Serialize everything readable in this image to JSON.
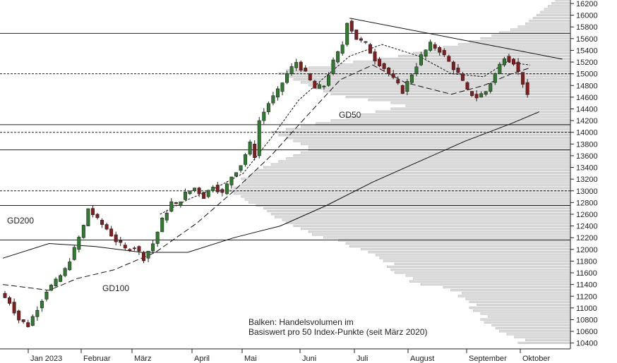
{
  "chart_data": {
    "type": "candlestick",
    "title": "",
    "xlabel": "",
    "ylabel": "",
    "ylim": [
      10300,
      16250
    ],
    "x_ticks": [
      "Jan 2023",
      "Februar",
      "März",
      "April",
      "Mai",
      "Juni",
      "Juli",
      "August",
      "September",
      "Oktober"
    ],
    "y_ticks": [
      10400,
      10600,
      10800,
      11000,
      11200,
      11400,
      11600,
      11800,
      12000,
      12200,
      12400,
      12600,
      12800,
      13000,
      13200,
      13400,
      13600,
      13800,
      14000,
      14200,
      14400,
      14600,
      14800,
      15000,
      15200,
      15400,
      15600,
      15800,
      16000,
      16200
    ],
    "annotations": {
      "gd200": "GD200",
      "gd100": "GD100",
      "gd50": "GD50",
      "note_line1": "Balken: Handelsvolumen im",
      "note_line2": "Basiswert pro 50 Index-Punkte (seit März 2020)"
    },
    "horizontal_lines": [
      {
        "value": 15690,
        "style": "solid"
      },
      {
        "value": 15000,
        "style": "dashed"
      },
      {
        "value": 14130,
        "style": "solid"
      },
      {
        "value": 14000,
        "style": "dashed"
      },
      {
        "value": 13700,
        "style": "solid"
      },
      {
        "value": 13000,
        "style": "dashed"
      },
      {
        "value": 12750,
        "style": "solid"
      },
      {
        "value": 12160,
        "style": "solid"
      }
    ],
    "price_path": [
      [
        11250,
        0
      ],
      [
        11100,
        2
      ],
      [
        10800,
        4
      ],
      [
        10700,
        6
      ],
      [
        11000,
        8
      ],
      [
        11300,
        10
      ],
      [
        11450,
        12
      ],
      [
        11650,
        14
      ],
      [
        12000,
        16
      ],
      [
        12400,
        18
      ],
      [
        12700,
        19
      ],
      [
        12500,
        21
      ],
      [
        12350,
        23
      ],
      [
        12150,
        25
      ],
      [
        12000,
        27
      ],
      [
        12050,
        29
      ],
      [
        11850,
        31
      ],
      [
        12100,
        33
      ],
      [
        12500,
        35
      ],
      [
        12800,
        37
      ],
      [
        12750,
        38
      ],
      [
        12950,
        40
      ],
      [
        13050,
        42
      ],
      [
        12900,
        44
      ],
      [
        13100,
        46
      ],
      [
        12950,
        48
      ],
      [
        13250,
        50
      ],
      [
        13450,
        52
      ],
      [
        13800,
        54
      ],
      [
        13600,
        55
      ],
      [
        14200,
        56
      ],
      [
        14500,
        58
      ],
      [
        14700,
        60
      ],
      [
        15000,
        62
      ],
      [
        15200,
        64
      ],
      [
        15000,
        66
      ],
      [
        14750,
        68
      ],
      [
        14800,
        70
      ],
      [
        15200,
        72
      ],
      [
        15500,
        74
      ],
      [
        15900,
        75
      ],
      [
        15600,
        77
      ],
      [
        15500,
        79
      ],
      [
        15250,
        81
      ],
      [
        15100,
        83
      ],
      [
        14900,
        85
      ],
      [
        14700,
        87
      ],
      [
        15000,
        89
      ],
      [
        15300,
        91
      ],
      [
        15500,
        93
      ],
      [
        15400,
        95
      ],
      [
        15200,
        97
      ],
      [
        15000,
        99
      ],
      [
        14700,
        101
      ],
      [
        14600,
        103
      ],
      [
        14700,
        105
      ],
      [
        15000,
        107
      ],
      [
        15300,
        109
      ],
      [
        15200,
        111
      ],
      [
        14850,
        113
      ],
      [
        14600,
        114
      ]
    ],
    "gd200": [
      [
        11850,
        0
      ],
      [
        12100,
        10
      ],
      [
        12050,
        20
      ],
      [
        11950,
        30
      ],
      [
        11950,
        40
      ],
      [
        12200,
        50
      ],
      [
        12400,
        60
      ],
      [
        12750,
        70
      ],
      [
        13150,
        80
      ],
      [
        13500,
        90
      ],
      [
        13850,
        100
      ],
      [
        14150,
        110
      ],
      [
        14350,
        116
      ]
    ],
    "gd100": [
      [
        11400,
        0
      ],
      [
        11300,
        10
      ],
      [
        11500,
        16
      ],
      [
        11650,
        24
      ],
      [
        11950,
        33
      ],
      [
        12450,
        42
      ],
      [
        13000,
        50
      ],
      [
        13600,
        58
      ],
      [
        14300,
        66
      ],
      [
        14900,
        73
      ],
      [
        15150,
        80
      ],
      [
        14850,
        87
      ],
      [
        14650,
        97
      ],
      [
        14800,
        104
      ],
      [
        15000,
        110
      ],
      [
        15100,
        114
      ]
    ],
    "gd50": [
      [
        12600,
        34
      ],
      [
        12850,
        40
      ],
      [
        13050,
        46
      ],
      [
        13300,
        52
      ],
      [
        13900,
        58
      ],
      [
        14550,
        64
      ],
      [
        14900,
        69
      ],
      [
        15300,
        75
      ],
      [
        15500,
        82
      ],
      [
        15300,
        90
      ],
      [
        15000,
        97
      ],
      [
        14950,
        104
      ],
      [
        15200,
        109
      ],
      [
        15150,
        114
      ]
    ],
    "trendline": {
      "start": [
        15950,
        75
      ],
      "end": [
        15250,
        121
      ]
    },
    "volume_profile": [
      [
        10400,
        140
      ],
      [
        10450,
        120
      ],
      [
        10500,
        150
      ],
      [
        10550,
        170
      ],
      [
        10600,
        190
      ],
      [
        10650,
        200
      ],
      [
        10700,
        210
      ],
      [
        10750,
        230
      ],
      [
        10800,
        240
      ],
      [
        10850,
        220
      ],
      [
        10900,
        240
      ],
      [
        10950,
        260
      ],
      [
        11000,
        270
      ],
      [
        11050,
        250
      ],
      [
        11100,
        270
      ],
      [
        11150,
        280
      ],
      [
        11200,
        300
      ],
      [
        11250,
        290
      ],
      [
        11300,
        320
      ],
      [
        11350,
        340
      ],
      [
        11400,
        400
      ],
      [
        11450,
        430
      ],
      [
        11500,
        420
      ],
      [
        11550,
        440
      ],
      [
        11600,
        470
      ],
      [
        11650,
        480
      ],
      [
        11700,
        490
      ],
      [
        11750,
        470
      ],
      [
        11800,
        500
      ],
      [
        11850,
        510
      ],
      [
        11900,
        520
      ],
      [
        11950,
        540
      ],
      [
        12000,
        560
      ],
      [
        12050,
        590
      ],
      [
        12100,
        600
      ],
      [
        12150,
        620
      ],
      [
        12200,
        660
      ],
      [
        12250,
        690
      ],
      [
        12300,
        700
      ],
      [
        12350,
        720
      ],
      [
        12400,
        740
      ],
      [
        12450,
        760
      ],
      [
        12500,
        770
      ],
      [
        12550,
        790
      ],
      [
        12600,
        800
      ],
      [
        12650,
        810
      ],
      [
        12700,
        820
      ],
      [
        12750,
        840
      ],
      [
        12800,
        860
      ],
      [
        12850,
        870
      ],
      [
        12900,
        880
      ],
      [
        12950,
        900
      ],
      [
        13000,
        920
      ],
      [
        13050,
        900
      ],
      [
        13100,
        880
      ],
      [
        13150,
        870
      ],
      [
        13200,
        880
      ],
      [
        13250,
        860
      ],
      [
        13300,
        850
      ],
      [
        13350,
        840
      ],
      [
        13400,
        820
      ],
      [
        13450,
        800
      ],
      [
        13500,
        780
      ],
      [
        13550,
        760
      ],
      [
        13600,
        740
      ],
      [
        13650,
        720
      ],
      [
        13700,
        700
      ],
      [
        13750,
        700
      ],
      [
        13800,
        720
      ],
      [
        13850,
        740
      ],
      [
        13900,
        760
      ],
      [
        13950,
        780
      ],
      [
        14000,
        800
      ],
      [
        14050,
        760
      ],
      [
        14100,
        720
      ],
      [
        14150,
        680
      ],
      [
        14200,
        640
      ],
      [
        14250,
        600
      ],
      [
        14300,
        560
      ],
      [
        14350,
        520
      ],
      [
        14400,
        480
      ],
      [
        14450,
        440
      ],
      [
        14500,
        480
      ],
      [
        14550,
        540
      ],
      [
        14600,
        600
      ],
      [
        14650,
        640
      ],
      [
        14700,
        660
      ],
      [
        14750,
        680
      ],
      [
        14800,
        700
      ],
      [
        14850,
        720
      ],
      [
        14900,
        740
      ],
      [
        14950,
        760
      ],
      [
        15000,
        780
      ],
      [
        15050,
        760
      ],
      [
        15100,
        700
      ],
      [
        15150,
        640
      ],
      [
        15200,
        580
      ],
      [
        15250,
        520
      ],
      [
        15300,
        460
      ],
      [
        15350,
        420
      ],
      [
        15400,
        380
      ],
      [
        15450,
        340
      ],
      [
        15500,
        300
      ],
      [
        15550,
        270
      ],
      [
        15600,
        240
      ],
      [
        15650,
        210
      ],
      [
        15700,
        190
      ],
      [
        15750,
        160
      ],
      [
        15800,
        140
      ],
      [
        15850,
        120
      ],
      [
        15900,
        110
      ],
      [
        15950,
        100
      ],
      [
        16000,
        90
      ],
      [
        16050,
        80
      ],
      [
        16100,
        70
      ],
      [
        16150,
        60
      ],
      [
        16200,
        50
      ],
      [
        16250,
        40
      ]
    ]
  }
}
